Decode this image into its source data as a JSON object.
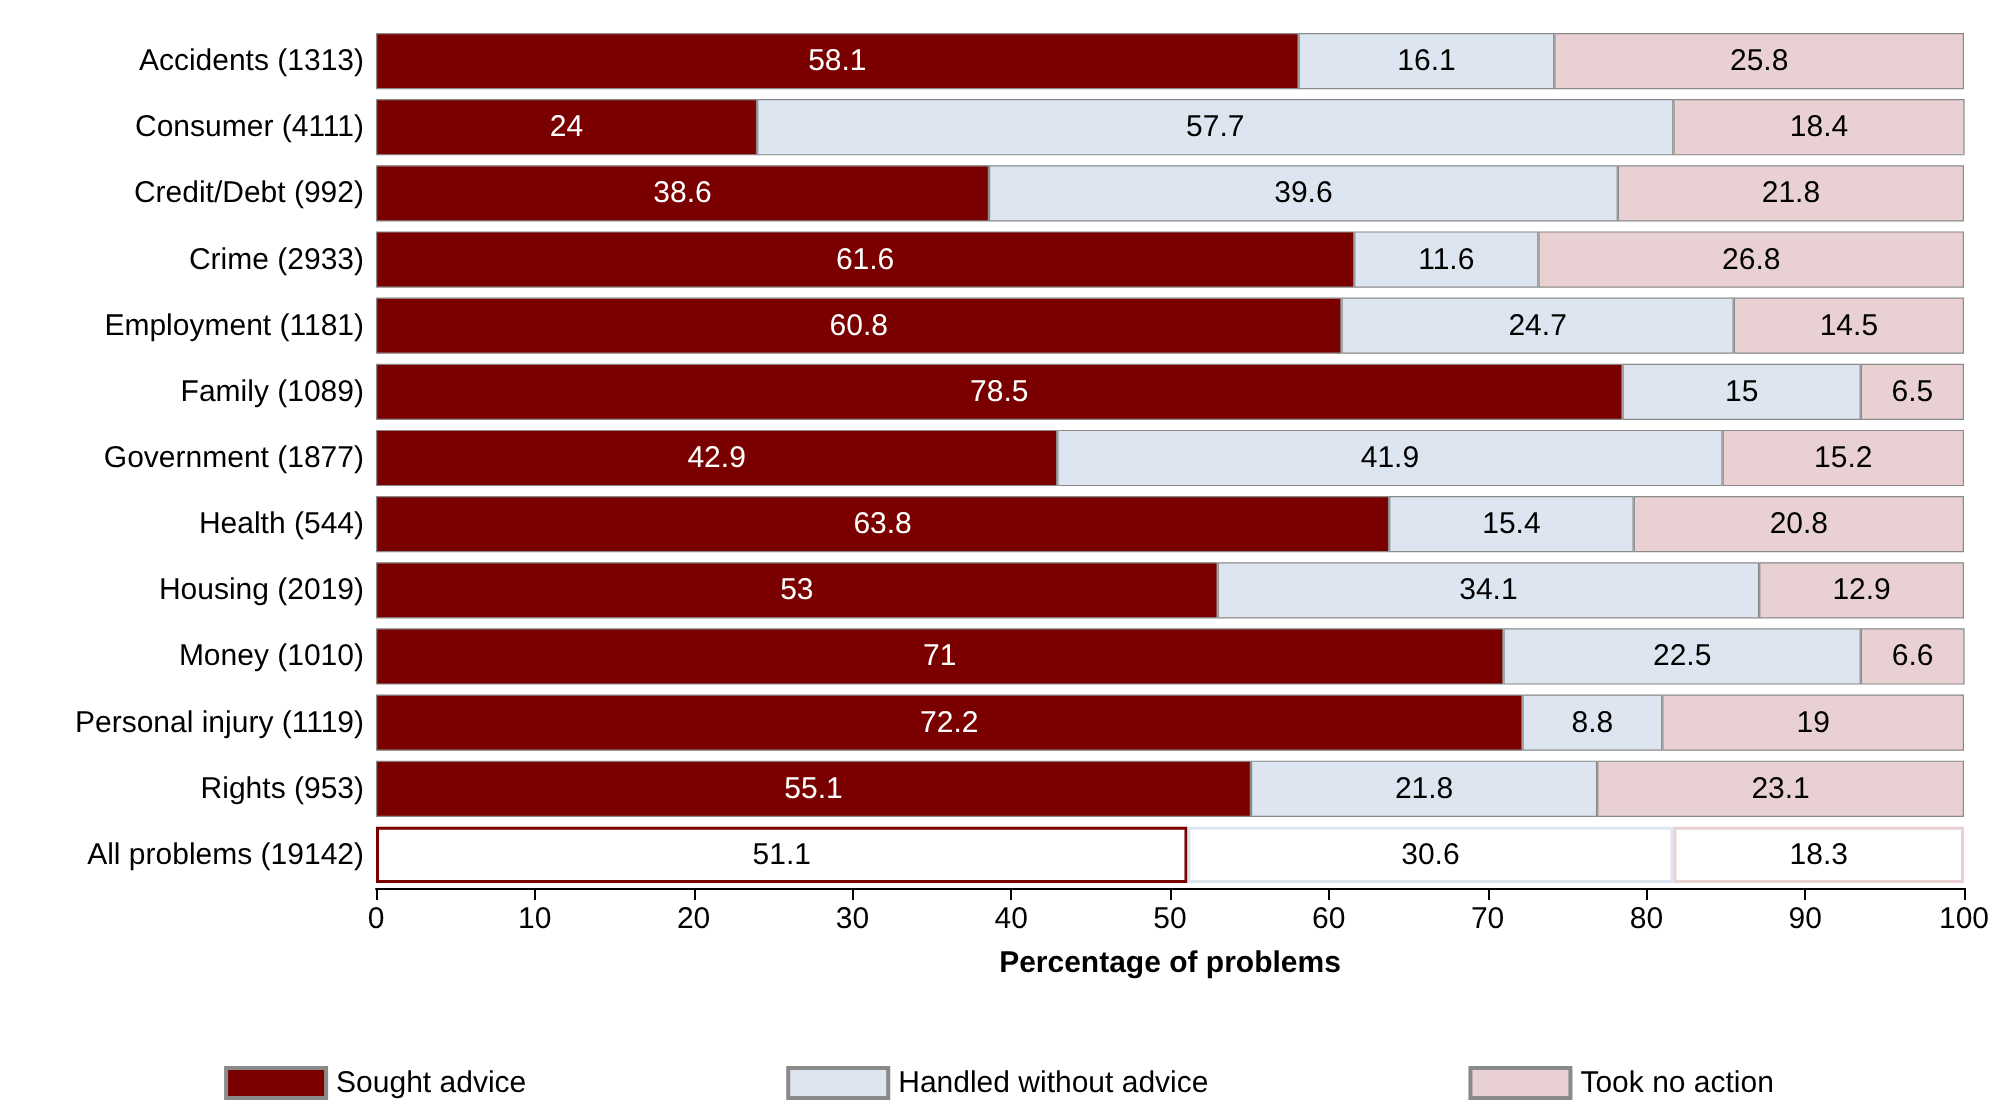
{
  "chart_data": {
    "type": "bar",
    "orientation": "horizontal",
    "stacked": true,
    "data_labels": true,
    "legend": "bottom",
    "grid": false,
    "xlabel": "Percentage of problems",
    "xlim": [
      0,
      100
    ],
    "xticks": [
      0,
      10,
      20,
      30,
      40,
      50,
      60,
      70,
      80,
      90,
      100
    ],
    "categories": [
      "Accidents (1313)",
      "Consumer (4111)",
      "Credit/Debt (992)",
      "Crime (2933)",
      "Employment (1181)",
      "Family (1089)",
      "Government (1877)",
      "Health (544)",
      "Housing (2019)",
      "Money (1010)",
      "Personal injury (1119)",
      "Rights (953)",
      "All problems (19142)"
    ],
    "series": [
      {
        "name": "Sought advice",
        "color": "#7a0000",
        "colors": [
          "#7a0000",
          "#7a0000",
          "#7a0000",
          "#7a0000",
          "#7a0000",
          "#7a0000",
          "#7a0000",
          "#7a0000",
          "#7a0000",
          "#7a0000",
          "#7a0000",
          "#7a0000",
          "#ffffff"
        ],
        "values": [
          58.1,
          24,
          38.6,
          61.6,
          60.8,
          78.5,
          42.9,
          63.8,
          53,
          71,
          72.2,
          55.1,
          51.1
        ]
      },
      {
        "name": "Handled without advice",
        "color": "#dde6f0",
        "colors": [
          "#dde6f0",
          "#dde6f0",
          "#dde6f0",
          "#dde6f0",
          "#dde6f0",
          "#dde6f0",
          "#dde6f0",
          "#dde6f0",
          "#dde6f0",
          "#dde6f0",
          "#dde6f0",
          "#dde6f0",
          "#ffffff"
        ],
        "values": [
          16.1,
          57.7,
          39.6,
          11.6,
          24.7,
          15,
          41.9,
          15.4,
          34.1,
          22.5,
          8.8,
          21.8,
          30.6
        ]
      },
      {
        "name": "Took no action",
        "color": "#e8d0d3",
        "colors": [
          "#e8d0d3",
          "#e8d0d3",
          "#e8d0d3",
          "#e8d0d3",
          "#e8d0d3",
          "#e8d0d3",
          "#e8d0d3",
          "#e8d0d3",
          "#e8d0d3",
          "#e8d0d3",
          "#e8d0d3",
          "#e8d0d3",
          "#ffffff"
        ],
        "values": [
          25.8,
          18.4,
          21.8,
          26.8,
          14.5,
          6.5,
          15.2,
          20.8,
          12.9,
          6.6,
          19,
          23.1,
          18.3
        ]
      }
    ]
  }
}
